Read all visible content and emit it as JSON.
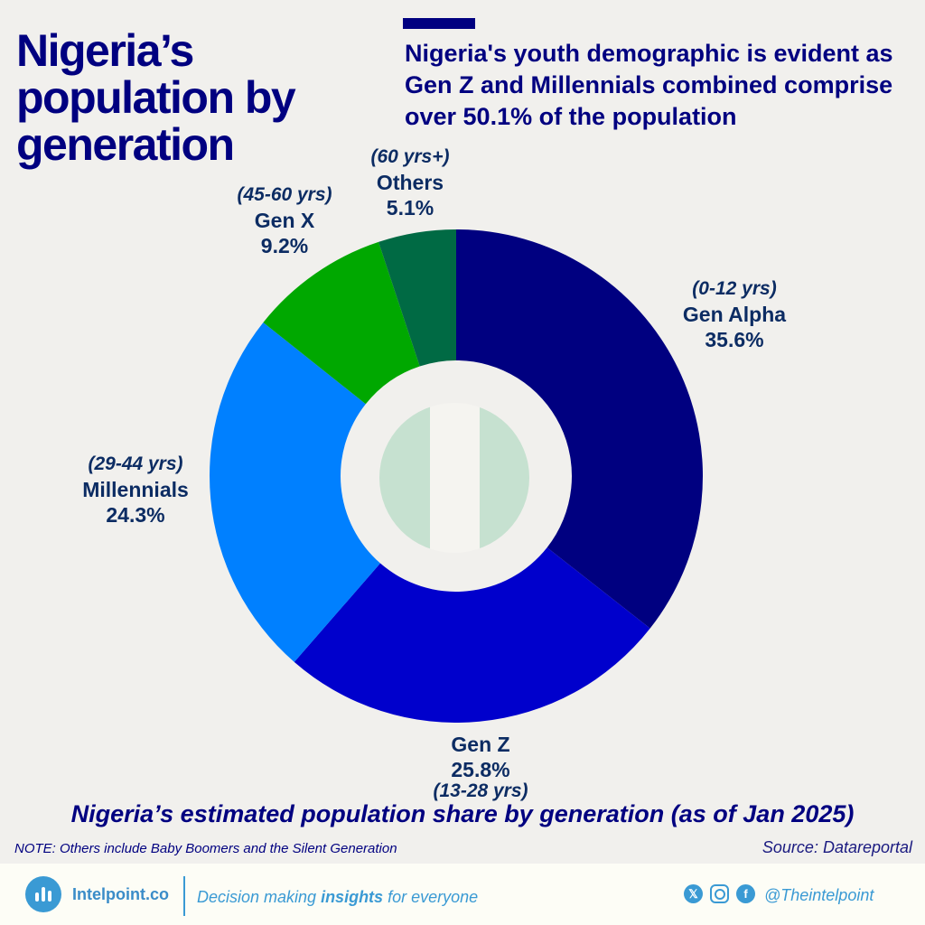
{
  "title": "Nigeria’s population by generation",
  "headline": "Nigeria's youth demographic is evident as Gen Z and Millennials combined comprise over 50.1% of the population",
  "chart_data": {
    "type": "pie",
    "variant": "donut",
    "title": "Nigeria’s estimated population share by generation (as of Jan 2025)",
    "start": "top, clockwise",
    "slices": [
      {
        "label": "Gen Alpha",
        "age": "(0-12 yrs)",
        "value": 35.6,
        "display": "35.6%",
        "color": "#000080"
      },
      {
        "label": "Gen Z",
        "age": "(13-28 yrs)",
        "value": 25.8,
        "display": "25.8%",
        "color": "#0000cc"
      },
      {
        "label": "Millennials",
        "age": "(29-44 yrs)",
        "value": 24.3,
        "display": "24.3%",
        "color": "#0080ff"
      },
      {
        "label": "Gen X",
        "age": "(45-60 yrs)",
        "value": 9.2,
        "display": "9.2%",
        "color": "#00a800"
      },
      {
        "label": "Others",
        "age": "(60 yrs+)",
        "value": 5.1,
        "display": "5.1%",
        "color": "#006a44"
      }
    ],
    "center_icon": "nigeria-flag-circle"
  },
  "note": "NOTE: Others include Baby Boomers and the Silent Generation",
  "source": "Source: Datareportal",
  "footer": {
    "brand": "Intelpoint.co",
    "tagline_pre": "Decision making ",
    "tagline_bold": "insights",
    "tagline_post": " for everyone",
    "handle": "@Theintelpoint",
    "social_icons": [
      "x-icon",
      "instagram-icon",
      "facebook-icon"
    ]
  }
}
